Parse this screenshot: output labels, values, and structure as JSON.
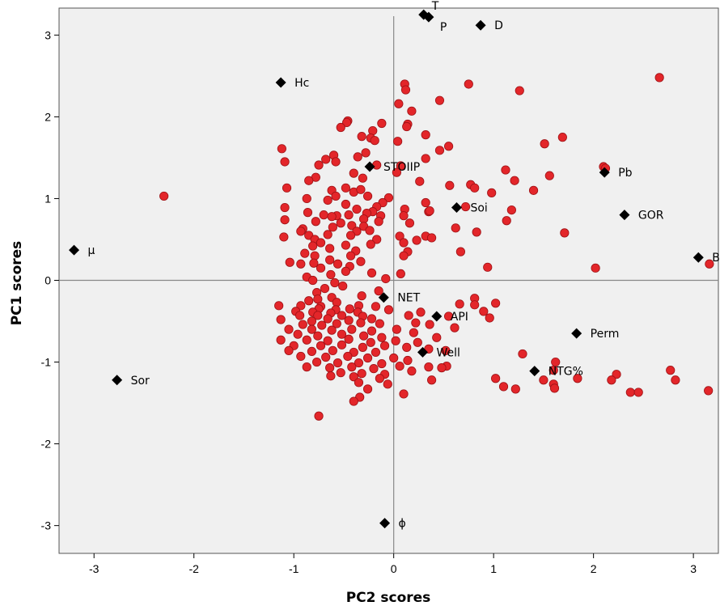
{
  "chart_data": {
    "type": "scatter",
    "xlabel": "PC2 scores",
    "ylabel": "PC1 scores",
    "xlim": [
      -3.35,
      3.25
    ],
    "ylim": [
      -3.34,
      3.33
    ],
    "x_ticks": [
      -3,
      -2,
      -1,
      0,
      1,
      2,
      3
    ],
    "y_ticks": [
      -3,
      -2,
      -1,
      0,
      1,
      2,
      3
    ],
    "reference_lines": {
      "x": 0,
      "y": 0
    },
    "grid": false,
    "colors": {
      "plot_background": "#f0f0f0",
      "observation_fill": "#e3262a",
      "observation_stroke": "#9e1115",
      "variable_marker": "#000000",
      "reference_line": "#888888"
    },
    "variables": [
      {
        "name": "T",
        "x": 0.3,
        "y": 3.25
      },
      {
        "name": "P",
        "x": 0.35,
        "y": 3.22
      },
      {
        "name": "D",
        "x": 0.87,
        "y": 3.12
      },
      {
        "name": "Hc",
        "x": -1.13,
        "y": 2.42
      },
      {
        "name": "STOIIP",
        "x": -0.24,
        "y": 1.39
      },
      {
        "name": "Pb",
        "x": 2.11,
        "y": 1.32
      },
      {
        "name": "Soi",
        "x": 0.63,
        "y": 0.89
      },
      {
        "name": "GOR",
        "x": 2.31,
        "y": 0.8
      },
      {
        "name": "μ",
        "x": -3.2,
        "y": 0.37
      },
      {
        "name": "Bo",
        "x": 3.05,
        "y": 0.28
      },
      {
        "name": "NET",
        "x": -0.1,
        "y": -0.21
      },
      {
        "name": "API",
        "x": 0.43,
        "y": -0.44
      },
      {
        "name": "Perm",
        "x": 1.83,
        "y": -0.65
      },
      {
        "name": "Well",
        "x": 0.29,
        "y": -0.88
      },
      {
        "name": "NTG%",
        "x": 1.41,
        "y": -1.11
      },
      {
        "name": "Sor",
        "x": -2.77,
        "y": -1.22
      },
      {
        "name": "ϕ",
        "x": -0.09,
        "y": -2.97
      }
    ],
    "observations": [
      [
        -2.3,
        1.03
      ],
      [
        2.66,
        2.48
      ],
      [
        0.75,
        2.4
      ],
      [
        0.11,
        2.4
      ],
      [
        0.12,
        2.33
      ],
      [
        1.26,
        2.32
      ],
      [
        0.46,
        2.2
      ],
      [
        0.05,
        2.16
      ],
      [
        0.18,
        2.07
      ],
      [
        -0.46,
        1.95
      ],
      [
        -0.47,
        1.93
      ],
      [
        -0.12,
        1.92
      ],
      [
        -0.53,
        1.87
      ],
      [
        0.14,
        1.91
      ],
      [
        0.13,
        1.88
      ],
      [
        -0.21,
        1.83
      ],
      [
        0.32,
        1.78
      ],
      [
        -0.32,
        1.76
      ],
      [
        -0.23,
        1.74
      ],
      [
        -0.19,
        1.71
      ],
      [
        1.69,
        1.75
      ],
      [
        0.04,
        1.7
      ],
      [
        1.51,
        1.67
      ],
      [
        0.55,
        1.64
      ],
      [
        -1.12,
        1.61
      ],
      [
        0.46,
        1.59
      ],
      [
        -0.28,
        1.56
      ],
      [
        -0.6,
        1.53
      ],
      [
        -1.09,
        1.45
      ],
      [
        0.32,
        1.49
      ],
      [
        -0.68,
        1.48
      ],
      [
        -0.75,
        1.41
      ],
      [
        -0.36,
        1.51
      ],
      [
        -0.58,
        1.45
      ],
      [
        -0.17,
        1.41
      ],
      [
        0.07,
        1.4
      ],
      [
        2.1,
        1.39
      ],
      [
        2.12,
        1.37
      ],
      [
        1.12,
        1.35
      ],
      [
        0.03,
        1.32
      ],
      [
        -0.4,
        1.31
      ],
      [
        1.56,
        1.28
      ],
      [
        -0.78,
        1.26
      ],
      [
        -0.85,
        1.22
      ],
      [
        -0.31,
        1.25
      ],
      [
        1.21,
        1.22
      ],
      [
        0.26,
        1.21
      ],
      [
        0.56,
        1.16
      ],
      [
        0.77,
        1.17
      ],
      [
        -1.07,
        1.13
      ],
      [
        -0.48,
        1.13
      ],
      [
        -0.62,
        1.1
      ],
      [
        0.81,
        1.13
      ],
      [
        -0.4,
        1.08
      ],
      [
        -0.33,
        1.11
      ],
      [
        1.4,
        1.1
      ],
      [
        -0.58,
        1.03
      ],
      [
        -0.05,
        1.01
      ],
      [
        -0.87,
        1.0
      ],
      [
        -0.66,
        0.98
      ],
      [
        -0.26,
        1.03
      ],
      [
        0.98,
        1.07
      ],
      [
        -0.11,
        0.95
      ],
      [
        0.32,
        0.95
      ],
      [
        -0.48,
        0.93
      ],
      [
        -0.17,
        0.9
      ],
      [
        0.72,
        0.9
      ],
      [
        -1.09,
        0.89
      ],
      [
        -0.37,
        0.87
      ],
      [
        -0.21,
        0.84
      ],
      [
        0.11,
        0.87
      ],
      [
        0.35,
        0.84
      ],
      [
        -0.86,
        0.83
      ],
      [
        -0.7,
        0.8
      ],
      [
        -0.57,
        0.79
      ],
      [
        -0.45,
        0.8
      ],
      [
        -0.13,
        0.79
      ],
      [
        1.18,
        0.86
      ],
      [
        -0.27,
        0.82
      ],
      [
        0.36,
        0.85
      ],
      [
        -0.62,
        0.78
      ],
      [
        -0.3,
        0.75
      ],
      [
        -1.09,
        0.74
      ],
      [
        -0.15,
        0.72
      ],
      [
        1.13,
        0.73
      ],
      [
        0.1,
        0.79
      ],
      [
        -0.78,
        0.72
      ],
      [
        -0.53,
        0.7
      ],
      [
        -0.42,
        0.67
      ],
      [
        -0.61,
        0.65
      ],
      [
        0.16,
        0.7
      ],
      [
        -0.3,
        0.66
      ],
      [
        0.62,
        0.64
      ],
      [
        -0.91,
        0.63
      ],
      [
        -0.37,
        0.6
      ],
      [
        -0.24,
        0.61
      ],
      [
        0.83,
        0.59
      ],
      [
        -0.93,
        0.6
      ],
      [
        -0.85,
        0.55
      ],
      [
        -0.66,
        0.56
      ],
      [
        1.71,
        0.58
      ],
      [
        -1.1,
        0.53
      ],
      [
        -0.43,
        0.55
      ],
      [
        0.32,
        0.54
      ],
      [
        -0.79,
        0.5
      ],
      [
        -0.73,
        0.46
      ],
      [
        -0.17,
        0.5
      ],
      [
        0.06,
        0.54
      ],
      [
        0.1,
        0.46
      ],
      [
        -0.48,
        0.43
      ],
      [
        -0.23,
        0.44
      ],
      [
        0.23,
        0.49
      ],
      [
        0.38,
        0.52
      ],
      [
        -0.81,
        0.42
      ],
      [
        -0.64,
        0.39
      ],
      [
        0.67,
        0.35
      ],
      [
        -0.89,
        0.33
      ],
      [
        -0.38,
        0.36
      ],
      [
        0.14,
        0.35
      ],
      [
        -0.79,
        0.3
      ],
      [
        -0.43,
        0.3
      ],
      [
        -0.64,
        0.25
      ],
      [
        0.1,
        0.3
      ],
      [
        -1.04,
        0.22
      ],
      [
        -0.93,
        0.2
      ],
      [
        -0.8,
        0.21
      ],
      [
        -0.33,
        0.23
      ],
      [
        -0.56,
        0.2
      ],
      [
        0.94,
        0.16
      ],
      [
        -0.73,
        0.15
      ],
      [
        -0.44,
        0.17
      ],
      [
        2.02,
        0.15
      ],
      [
        3.16,
        0.2
      ],
      [
        -0.48,
        0.11
      ],
      [
        -0.22,
        0.09
      ],
      [
        0.07,
        0.08
      ],
      [
        -0.63,
        0.07
      ],
      [
        -0.87,
        0.04
      ],
      [
        -0.08,
        0.02
      ],
      [
        -0.59,
        -0.03
      ],
      [
        -0.81,
        0.0
      ],
      [
        -0.51,
        -0.07
      ],
      [
        -0.69,
        -0.1
      ],
      [
        -0.15,
        -0.13
      ],
      [
        -0.77,
        -0.15
      ],
      [
        -0.32,
        -0.19
      ],
      [
        -0.62,
        -0.21
      ],
      [
        -0.76,
        -0.23
      ],
      [
        -0.85,
        -0.25
      ],
      [
        -0.57,
        -0.27
      ],
      [
        0.81,
        -0.22
      ],
      [
        1.02,
        -0.28
      ],
      [
        0.66,
        -0.29
      ],
      [
        0.81,
        -0.3
      ],
      [
        -1.15,
        -0.31
      ],
      [
        -0.93,
        -0.31
      ],
      [
        -0.73,
        -0.32
      ],
      [
        -0.35,
        -0.31
      ],
      [
        -0.18,
        -0.32
      ],
      [
        -0.05,
        -0.36
      ],
      [
        -0.75,
        -0.35
      ],
      [
        -0.58,
        -0.36
      ],
      [
        -0.44,
        -0.35
      ],
      [
        -0.98,
        -0.38
      ],
      [
        -0.81,
        -0.39
      ],
      [
        -0.63,
        -0.4
      ],
      [
        -0.36,
        -0.39
      ],
      [
        0.27,
        -0.39
      ],
      [
        0.9,
        -0.38
      ],
      [
        -0.94,
        -0.43
      ],
      [
        -0.76,
        -0.43
      ],
      [
        -0.52,
        -0.43
      ],
      [
        -0.31,
        -0.44
      ],
      [
        0.15,
        -0.43
      ],
      [
        0.55,
        -0.44
      ],
      [
        -1.13,
        -0.48
      ],
      [
        -0.82,
        -0.5
      ],
      [
        -0.66,
        -0.47
      ],
      [
        -0.45,
        -0.49
      ],
      [
        -0.22,
        -0.47
      ],
      [
        0.96,
        -0.46
      ],
      [
        -0.91,
        -0.54
      ],
      [
        -0.72,
        -0.55
      ],
      [
        -0.57,
        -0.53
      ],
      [
        -0.33,
        -0.52
      ],
      [
        -0.14,
        -0.53
      ],
      [
        0.22,
        -0.52
      ],
      [
        0.36,
        -0.54
      ],
      [
        0.61,
        -0.58
      ],
      [
        -1.05,
        -0.6
      ],
      [
        -0.82,
        -0.6
      ],
      [
        -0.62,
        -0.61
      ],
      [
        -0.42,
        -0.6
      ],
      [
        -0.22,
        -0.62
      ],
      [
        0.03,
        -0.6
      ],
      [
        0.2,
        -0.64
      ],
      [
        -0.96,
        -0.66
      ],
      [
        -0.76,
        -0.68
      ],
      [
        -0.52,
        -0.66
      ],
      [
        -0.3,
        -0.68
      ],
      [
        -0.12,
        -0.7
      ],
      [
        0.43,
        -0.7
      ],
      [
        -1.13,
        -0.73
      ],
      [
        -0.87,
        -0.73
      ],
      [
        -0.66,
        -0.74
      ],
      [
        -0.45,
        -0.72
      ],
      [
        -0.23,
        -0.76
      ],
      [
        0.02,
        -0.74
      ],
      [
        0.24,
        -0.76
      ],
      [
        -1.0,
        -0.8
      ],
      [
        -0.73,
        -0.8
      ],
      [
        -0.52,
        -0.79
      ],
      [
        -0.31,
        -0.82
      ],
      [
        -0.09,
        -0.8
      ],
      [
        0.13,
        -0.82
      ],
      [
        0.35,
        -0.84
      ],
      [
        -1.05,
        -0.86
      ],
      [
        -0.82,
        -0.87
      ],
      [
        -0.61,
        -0.86
      ],
      [
        -0.4,
        -0.88
      ],
      [
        -0.18,
        -0.88
      ],
      [
        0.52,
        -0.86
      ],
      [
        -0.93,
        -0.93
      ],
      [
        -0.68,
        -0.94
      ],
      [
        -0.46,
        -0.93
      ],
      [
        -0.26,
        -0.95
      ],
      [
        0.0,
        -0.95
      ],
      [
        -0.77,
        -1.0
      ],
      [
        -0.56,
        -1.01
      ],
      [
        -0.35,
        -1.01
      ],
      [
        -0.12,
        -1.02
      ],
      [
        0.14,
        -0.98
      ],
      [
        1.29,
        -0.9
      ],
      [
        1.62,
        -1.0
      ],
      [
        -0.87,
        -1.06
      ],
      [
        -0.64,
        -1.07
      ],
      [
        -0.42,
        -1.06
      ],
      [
        -0.2,
        -1.08
      ],
      [
        0.06,
        -1.05
      ],
      [
        0.35,
        -1.06
      ],
      [
        0.53,
        -1.05
      ],
      [
        0.48,
        -1.07
      ],
      [
        -0.53,
        -1.13
      ],
      [
        -0.32,
        -1.14
      ],
      [
        -0.09,
        -1.15
      ],
      [
        0.18,
        -1.11
      ],
      [
        1.6,
        -1.1
      ],
      [
        2.23,
        -1.15
      ],
      [
        2.77,
        -1.1
      ],
      [
        -0.63,
        -1.17
      ],
      [
        -0.4,
        -1.18
      ],
      [
        -0.14,
        -1.2
      ],
      [
        1.02,
        -1.2
      ],
      [
        1.5,
        -1.22
      ],
      [
        1.6,
        -1.27
      ],
      [
        2.18,
        -1.22
      ],
      [
        2.82,
        -1.22
      ],
      [
        -0.35,
        -1.25
      ],
      [
        -0.06,
        -1.27
      ],
      [
        0.38,
        -1.22
      ],
      [
        1.1,
        -1.3
      ],
      [
        1.22,
        -1.33
      ],
      [
        1.61,
        -1.32
      ],
      [
        1.84,
        -1.2
      ],
      [
        2.37,
        -1.37
      ],
      [
        2.45,
        -1.37
      ],
      [
        3.15,
        -1.35
      ],
      [
        -0.26,
        -1.33
      ],
      [
        0.1,
        -1.39
      ],
      [
        -0.34,
        -1.43
      ],
      [
        -0.4,
        -1.48
      ],
      [
        -0.75,
        -1.66
      ]
    ]
  }
}
